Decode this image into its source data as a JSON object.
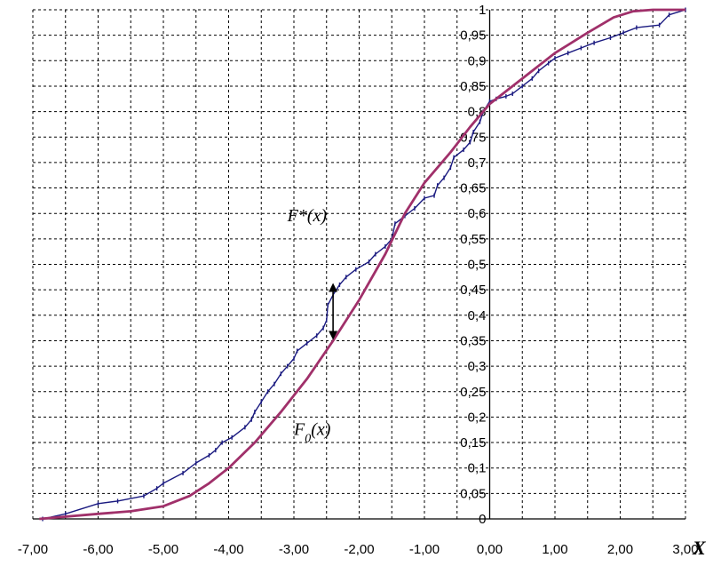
{
  "chart_data": {
    "type": "line",
    "xlabel": "X",
    "ylabel": "",
    "xlim": [
      -7,
      3
    ],
    "ylim": [
      0,
      1
    ],
    "grid": true,
    "x_ticks": [
      -7,
      -6,
      -5,
      -4,
      -3,
      -2,
      -1,
      0,
      1,
      2,
      3
    ],
    "x_tick_labels": [
      "-7,00",
      "-6,00",
      "-5,00",
      "-4,00",
      "-3,00",
      "-2,00",
      "-1,00",
      "0,00",
      "1,00",
      "2,00",
      "3,00"
    ],
    "y_ticks": [
      0,
      0.05,
      0.1,
      0.15,
      0.2,
      0.25,
      0.3,
      0.35,
      0.4,
      0.45,
      0.5,
      0.55,
      0.6,
      0.65,
      0.7,
      0.75,
      0.8,
      0.85,
      0.9,
      0.95,
      1
    ],
    "y_tick_labels": [
      "0",
      "0,05",
      "0,1",
      "0,15",
      "0,2",
      "0,25",
      "0,3",
      "0,35",
      "0,4",
      "0,45",
      "0,5",
      "0,55",
      "0,6",
      "0,65",
      "0,7",
      "0,75",
      "0,8",
      "0,85",
      "0,9",
      "0,95",
      "1"
    ],
    "series": [
      {
        "name": "F*(x)",
        "color": "#1a1a80",
        "points": [
          [
            -6.85,
            0.0
          ],
          [
            -6.5,
            0.01
          ],
          [
            -6.0,
            0.03
          ],
          [
            -5.7,
            0.035
          ],
          [
            -5.3,
            0.045
          ],
          [
            -5.1,
            0.06
          ],
          [
            -5.0,
            0.07
          ],
          [
            -4.7,
            0.09
          ],
          [
            -4.5,
            0.11
          ],
          [
            -4.3,
            0.125
          ],
          [
            -4.2,
            0.135
          ],
          [
            -4.1,
            0.15
          ],
          [
            -3.95,
            0.16
          ],
          [
            -3.75,
            0.18
          ],
          [
            -3.65,
            0.195
          ],
          [
            -3.6,
            0.21
          ],
          [
            -3.5,
            0.23
          ],
          [
            -3.4,
            0.25
          ],
          [
            -3.3,
            0.265
          ],
          [
            -3.2,
            0.285
          ],
          [
            -3.1,
            0.3
          ],
          [
            -3.0,
            0.315
          ],
          [
            -2.95,
            0.33
          ],
          [
            -2.8,
            0.345
          ],
          [
            -2.65,
            0.36
          ],
          [
            -2.55,
            0.375
          ],
          [
            -2.5,
            0.39
          ],
          [
            -2.48,
            0.42
          ],
          [
            -2.4,
            0.44
          ],
          [
            -2.3,
            0.46
          ],
          [
            -2.2,
            0.475
          ],
          [
            -2.05,
            0.49
          ],
          [
            -1.85,
            0.505
          ],
          [
            -1.75,
            0.52
          ],
          [
            -1.6,
            0.535
          ],
          [
            -1.5,
            0.55
          ],
          [
            -1.45,
            0.58
          ],
          [
            -1.3,
            0.595
          ],
          [
            -1.15,
            0.61
          ],
          [
            -1.0,
            0.63
          ],
          [
            -0.85,
            0.635
          ],
          [
            -0.8,
            0.655
          ],
          [
            -0.7,
            0.67
          ],
          [
            -0.6,
            0.69
          ],
          [
            -0.55,
            0.71
          ],
          [
            -0.4,
            0.725
          ],
          [
            -0.3,
            0.74
          ],
          [
            -0.25,
            0.76
          ],
          [
            -0.15,
            0.78
          ],
          [
            -0.1,
            0.8
          ],
          [
            0.0,
            0.82
          ],
          [
            0.1,
            0.825
          ],
          [
            0.25,
            0.83
          ],
          [
            0.35,
            0.835
          ],
          [
            0.5,
            0.85
          ],
          [
            0.65,
            0.865
          ],
          [
            0.75,
            0.88
          ],
          [
            0.9,
            0.895
          ],
          [
            1.0,
            0.905
          ],
          [
            1.2,
            0.915
          ],
          [
            1.4,
            0.925
          ],
          [
            1.6,
            0.935
          ],
          [
            1.85,
            0.945
          ],
          [
            2.05,
            0.955
          ],
          [
            2.25,
            0.965
          ],
          [
            2.6,
            0.97
          ],
          [
            2.75,
            0.99
          ],
          [
            3.0,
            1.0
          ]
        ]
      },
      {
        "name": "F0(x)",
        "color": "#a0306a",
        "points": [
          [
            -6.9,
            0.0
          ],
          [
            -6.0,
            0.01
          ],
          [
            -5.5,
            0.015
          ],
          [
            -5.0,
            0.025
          ],
          [
            -4.6,
            0.045
          ],
          [
            -4.3,
            0.07
          ],
          [
            -4.0,
            0.1
          ],
          [
            -3.6,
            0.15
          ],
          [
            -3.2,
            0.21
          ],
          [
            -2.8,
            0.275
          ],
          [
            -2.4,
            0.35
          ],
          [
            -2.0,
            0.43
          ],
          [
            -1.6,
            0.52
          ],
          [
            -1.3,
            0.6
          ],
          [
            -1.0,
            0.66
          ],
          [
            -0.6,
            0.72
          ],
          [
            -0.3,
            0.77
          ],
          [
            0.0,
            0.815
          ],
          [
            0.5,
            0.865
          ],
          [
            1.0,
            0.915
          ],
          [
            1.5,
            0.955
          ],
          [
            1.9,
            0.985
          ],
          [
            2.2,
            0.997
          ],
          [
            2.5,
            1.0
          ],
          [
            3.0,
            1.0
          ]
        ]
      }
    ],
    "annotations": [
      {
        "text": "F*(x)",
        "x": -3.1,
        "y": 0.585
      },
      {
        "text": "F",
        "sub": "0",
        "rest": "(x)",
        "x": -3.0,
        "y": 0.165
      }
    ],
    "difference_arrow": {
      "x": -2.4,
      "y_from": 0.465,
      "y_to": 0.35
    }
  }
}
